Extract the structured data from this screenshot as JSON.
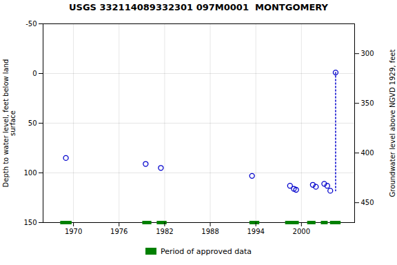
{
  "chart_data": {
    "type": "scatter",
    "title": "USGS 332114089332301 097M0001  MONTGOMERY",
    "ylabel": "Depth to water level, feet below land\nsurface",
    "y2label": "Groundwater level above NGVD 1929, feet",
    "xlim": [
      1966,
      2007
    ],
    "xticks": [
      1970,
      1976,
      1982,
      1988,
      1994,
      2000
    ],
    "ylim": [
      150,
      -50
    ],
    "yticks": [
      -50,
      0,
      50,
      100,
      150
    ],
    "y2lim": [
      470,
      270
    ],
    "y2ticks": [
      450,
      400,
      350,
      300
    ],
    "grid": true,
    "legend": "bottom",
    "series": [
      {
        "type": "scatter",
        "marker": "circle",
        "color": "#0000cc",
        "x": [
          1969.0,
          1979.5,
          1981.5,
          1993.5,
          1998.5,
          1999.0,
          1999.3,
          2001.5,
          2001.9,
          2003.0,
          2003.4,
          2003.8,
          2004.5
        ],
        "values": [
          85,
          91,
          95,
          103,
          113,
          116,
          117,
          112,
          114,
          111,
          113,
          118,
          -1
        ]
      },
      {
        "type": "line",
        "line_style": "dotted",
        "color": "#0000cc",
        "x": [
          2004.5,
          2004.5
        ],
        "values": [
          -1,
          118
        ]
      },
      {
        "type": "span",
        "name": "Period of approved data",
        "color": "#008000",
        "x_start": [
          1968.3,
          1979.1,
          1981.0,
          1993.2,
          1997.9,
          2000.8,
          2002.6,
          2003.8
        ],
        "x_end": [
          1969.8,
          1980.3,
          1982.3,
          1994.5,
          1999.7,
          2001.9,
          2003.5,
          2005.2
        ]
      }
    ]
  }
}
